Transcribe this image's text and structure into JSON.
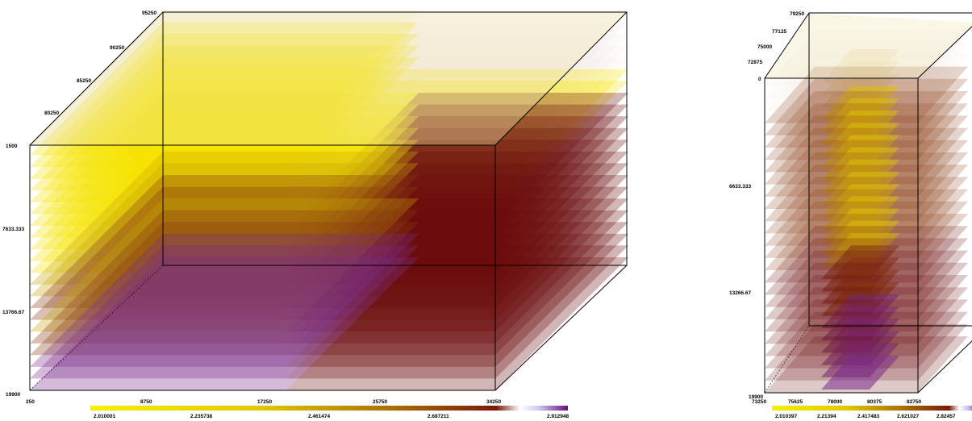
{
  "palette": {
    "yellow": "#f5e400",
    "gold": "#c8a400",
    "brown": "#8a3a10",
    "maroon": "#6a0a0a",
    "lavender": "#c8c8f0",
    "purple": "#7a2a8a",
    "cream": "#efe4b0",
    "white_pink": "#f4ece8",
    "edge": "#000000"
  },
  "views": [
    {
      "name": "left",
      "depth_labels": [
        "1500",
        "7633.333",
        "13766.67",
        "19900"
      ],
      "top_axis_labels": [
        "95250",
        "90250",
        "85250",
        "80250"
      ],
      "bottom_axis_labels": [
        "250",
        "8750",
        "17250",
        "25750",
        "34250"
      ],
      "color_scale": {
        "ticks": [
          "2.010001",
          "2.235738",
          "2.461474",
          "2.687211",
          "2.912948"
        ],
        "min": 2.010001,
        "max": 2.912948
      }
    },
    {
      "name": "right",
      "depth_labels": [
        "0",
        "6633.333",
        "13266.67",
        "19900"
      ],
      "top_axis_labels": [
        "79250",
        "77125",
        "75000",
        "72875"
      ],
      "bottom_axis_labels": [
        "73250",
        "75625",
        "78000",
        "80375",
        "82750"
      ],
      "color_scale": {
        "ticks": [
          "2.010397",
          "2.21394",
          "2.417483",
          "2.621027",
          "2.82457"
        ],
        "min": 2.010397,
        "max": 2.82457
      }
    }
  ]
}
